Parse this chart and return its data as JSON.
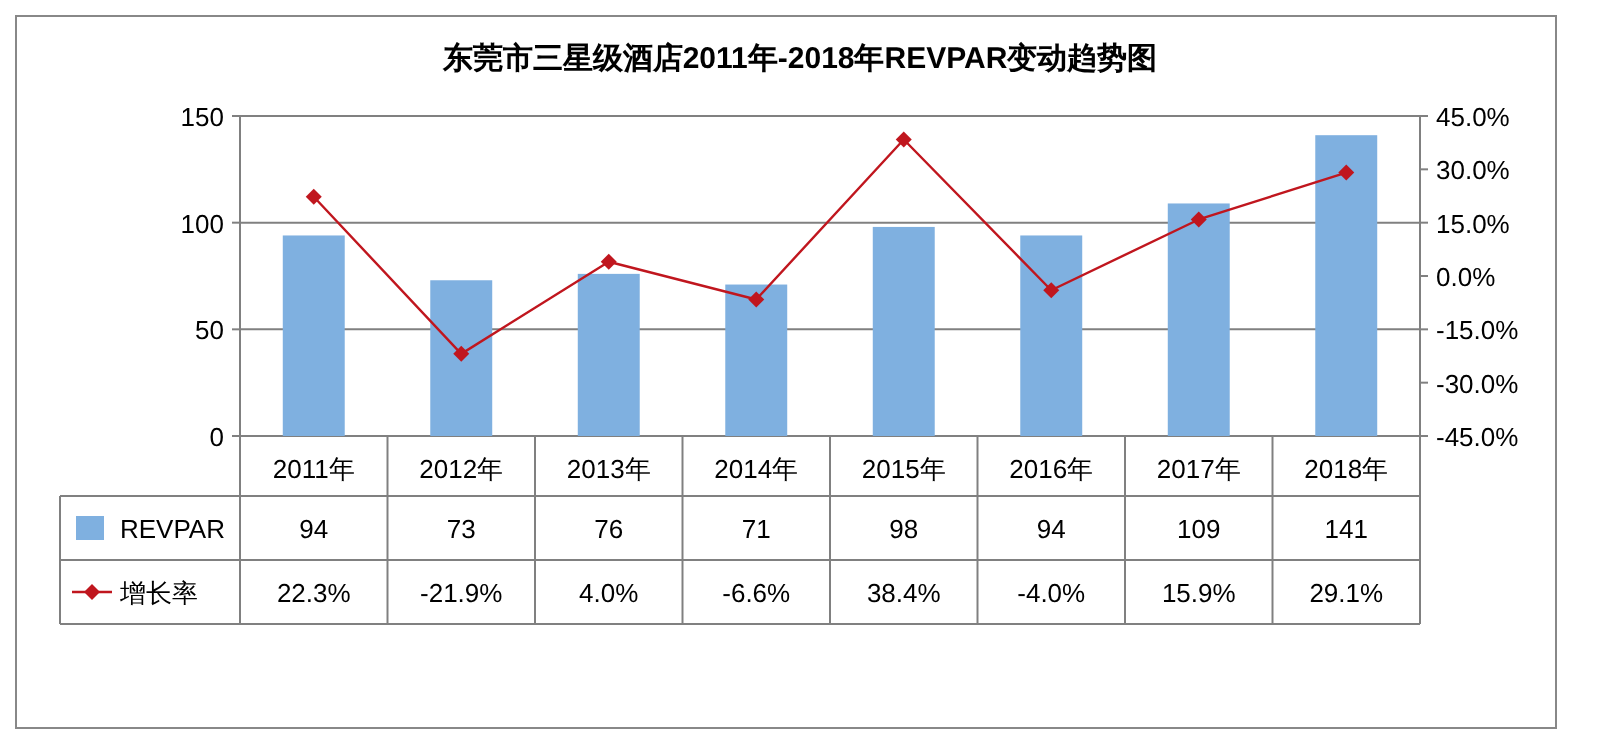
{
  "chart_data": {
    "type": "bar",
    "title": "东莞市三星级酒店2011年-2018年REVPAR变动趋势图",
    "categories": [
      "2011年",
      "2012年",
      "2013年",
      "2014年",
      "2015年",
      "2016年",
      "2017年",
      "2018年"
    ],
    "series": [
      {
        "name": "REVPAR",
        "color": "#7fb0e0",
        "values": [
          94,
          73,
          76,
          71,
          98,
          94,
          109,
          141
        ],
        "value_labels": [
          "94",
          "73",
          "76",
          "71",
          "98",
          "94",
          "109",
          "141"
        ]
      },
      {
        "name": "增长率",
        "type": "line",
        "axis": "y2",
        "color": "#c0161e",
        "marker": "diamond",
        "values": [
          22.3,
          -21.9,
          4.0,
          -6.6,
          38.4,
          -4.0,
          15.9,
          29.1
        ],
        "value_labels": [
          "22.3%",
          "-21.9%",
          "4.0%",
          "-6.6%",
          "38.4%",
          "-4.0%",
          "15.9%",
          "29.1%"
        ]
      }
    ],
    "ylim": [
      0,
      150
    ],
    "yticks": [
      0,
      50,
      100,
      150
    ],
    "y2lim": [
      -45,
      45
    ],
    "y2ticks": [
      {
        "value": -45,
        "label": "-45.0%"
      },
      {
        "value": -30,
        "label": "-30.0%"
      },
      {
        "value": -15,
        "label": "-15.0%"
      },
      {
        "value": 0,
        "label": "0.0%"
      },
      {
        "value": 15,
        "label": "15.0%"
      },
      {
        "value": 30,
        "label": "30.0%"
      },
      {
        "value": 45,
        "label": "45.0%"
      }
    ],
    "grid": "y",
    "legend": "bottom"
  }
}
